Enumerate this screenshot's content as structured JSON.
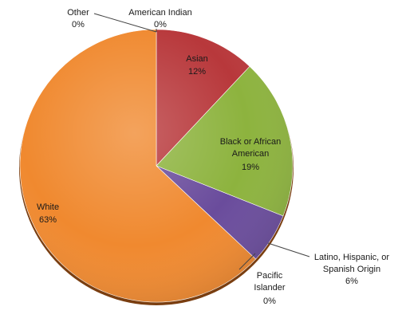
{
  "chart_data": {
    "type": "pie",
    "start_angle_deg": 0,
    "direction": "clockwise",
    "slices": [
      {
        "name": "American Indian",
        "value": 0,
        "label": "0%",
        "color": "#4472C4"
      },
      {
        "name": "Asian",
        "value": 12,
        "label": "12%",
        "color": "#B8383B"
      },
      {
        "name": "Black or African American",
        "value": 19,
        "label": "19%",
        "color": "#8DB33E"
      },
      {
        "name": "Latino, Hispanic, or Spanish Origin",
        "value": 6,
        "label": "6%",
        "color": "#6A4C9C"
      },
      {
        "name": "Pacific Islander",
        "value": 0,
        "label": "0%",
        "color": "#2FA0C4"
      },
      {
        "name": "White",
        "value": 63,
        "label": "63%",
        "color": "#F0892F"
      },
      {
        "name": "Other",
        "value": 0,
        "label": "0%",
        "color": "#7F7F7F"
      }
    ],
    "legend": "none",
    "title": ""
  }
}
